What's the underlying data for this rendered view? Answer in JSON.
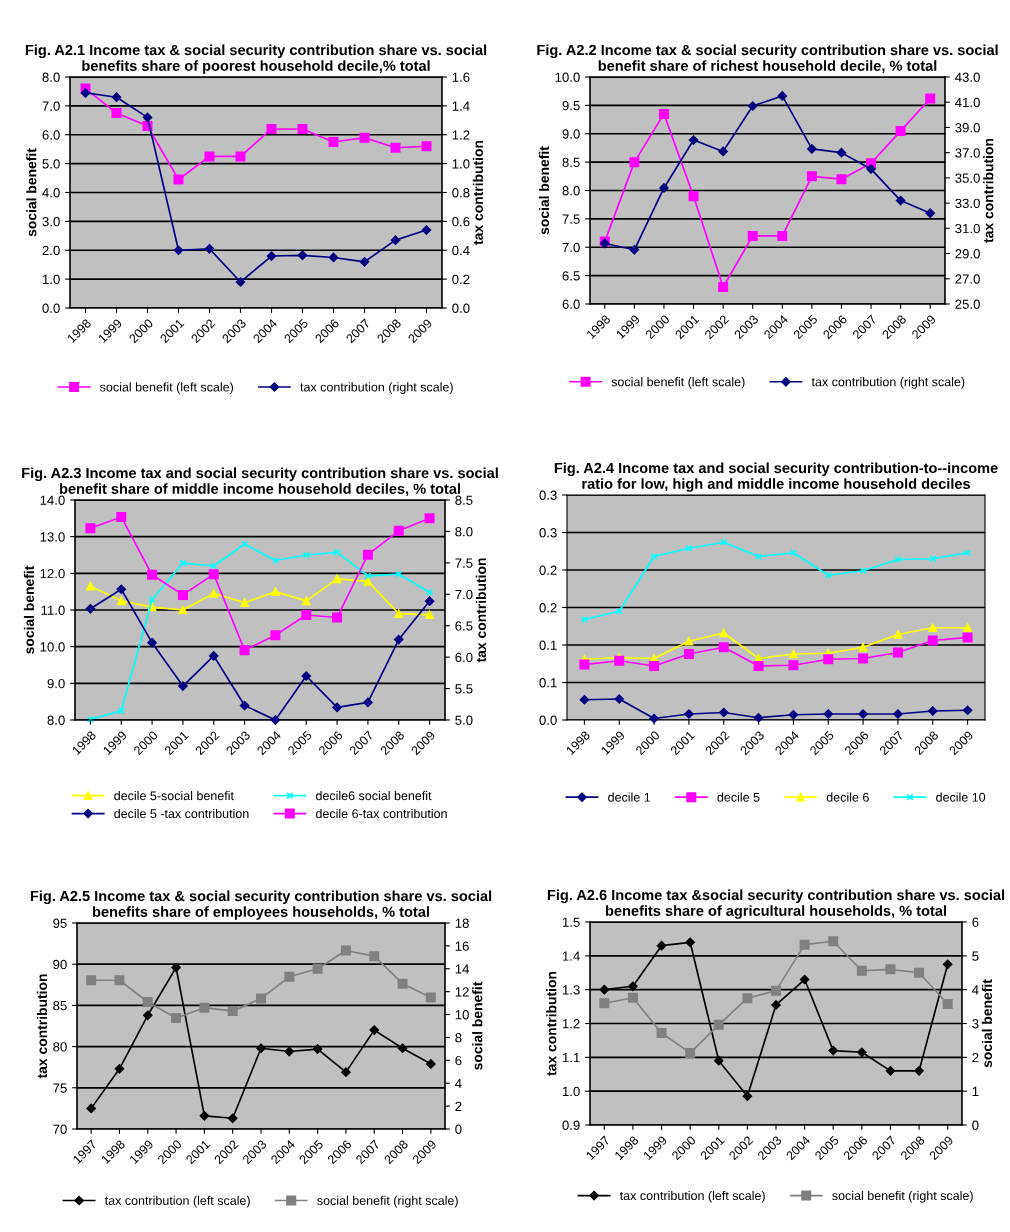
{
  "chart_data": [
    {
      "type": "line",
      "title": "Fig. A2.1 Income tax & social security contribution share vs. social benefits share of poorest household decile,% total",
      "ylabel": "social benefit",
      "y2label": "tax contribution",
      "categories": [
        "1998",
        "1999",
        "2000",
        "2001",
        "2002",
        "2003",
        "2004",
        "2005",
        "2006",
        "2007",
        "2008",
        "2009"
      ],
      "series": [
        {
          "name": "social benefit (left scale)",
          "color": "#ff00ff",
          "marker": "square",
          "values": [
            7.6,
            6.75,
            6.3,
            4.45,
            5.25,
            5.25,
            6.2,
            6.2,
            5.75,
            5.9,
            5.55,
            5.6
          ]
        },
        {
          "name": "tax contribution (right scale)",
          "color": "#000080",
          "marker": "diamond",
          "axis": "y2",
          "values": [
            1.49,
            1.46,
            1.32,
            0.4,
            0.41,
            0.18,
            0.36,
            0.365,
            0.35,
            0.32,
            0.47,
            0.54
          ]
        }
      ],
      "ylim": [
        0,
        8
      ],
      "yticks": [
        {
          "value": 0,
          "label": "0.0"
        },
        {
          "value": 1,
          "label": "1.0"
        },
        {
          "value": 2,
          "label": "2.0"
        },
        {
          "value": 3,
          "label": "3.0"
        },
        {
          "value": 4,
          "label": "4.0"
        },
        {
          "value": 5,
          "label": "5.0"
        },
        {
          "value": 6,
          "label": "6.0"
        },
        {
          "value": 7,
          "label": "7.0"
        },
        {
          "value": 8,
          "label": "8.0"
        }
      ],
      "y2lim": [
        0,
        1.6
      ],
      "y2ticks": [
        {
          "value": 0,
          "label": "0.0"
        },
        0.2,
        0.4,
        0.6,
        0.8,
        {
          "value": 1,
          "label": "1.0"
        },
        1.2,
        1.4,
        1.6
      ],
      "grid": "y",
      "legend": "bottom"
    },
    {
      "type": "line",
      "title": "Fig. A2.2 Income tax & social security contribution share vs. social benefit share of richest household decile, % total",
      "ylabel": "social benefit",
      "y2label": "tax contribution",
      "categories": [
        "1998",
        "1999",
        "2000",
        "2001",
        "2002",
        "2003",
        "2004",
        "2005",
        "2006",
        "2007",
        "2008",
        "2009"
      ],
      "series": [
        {
          "name": "social benefit (left scale)",
          "color": "#ff00ff",
          "marker": "square",
          "values": [
            7.1,
            8.5,
            9.35,
            7.9,
            6.3,
            7.2,
            7.2,
            8.25,
            8.2,
            8.48,
            9.05,
            9.62
          ]
        },
        {
          "name": "tax contribution (right scale)",
          "color": "#000080",
          "marker": "diamond",
          "axis": "y2",
          "values": [
            29.8,
            29.3,
            34.2,
            38.0,
            37.1,
            40.7,
            41.5,
            37.3,
            37.0,
            35.7,
            33.2,
            32.2
          ]
        }
      ],
      "ylim": [
        6,
        10
      ],
      "yticks": [
        {
          "value": 6,
          "label": "6.0"
        },
        6.5,
        {
          "value": 7,
          "label": "7.0"
        },
        7.5,
        {
          "value": 8,
          "label": "8.0"
        },
        8.5,
        {
          "value": 9,
          "label": "9.0"
        },
        9.5,
        {
          "value": 10,
          "label": "10.0"
        }
      ],
      "y2lim": [
        25,
        43
      ],
      "y2ticks": [
        {
          "value": 25,
          "label": "25.0"
        },
        {
          "value": 27,
          "label": "27.0"
        },
        {
          "value": 29,
          "label": "29.0"
        },
        {
          "value": 31,
          "label": "31.0"
        },
        {
          "value": 33,
          "label": "33.0"
        },
        {
          "value": 35,
          "label": "35.0"
        },
        {
          "value": 37,
          "label": "37.0"
        },
        {
          "value": 39,
          "label": "39.0"
        },
        {
          "value": 41,
          "label": "41.0"
        },
        {
          "value": 43,
          "label": "43.0"
        }
      ],
      "grid": "y",
      "legend": "bottom"
    },
    {
      "type": "line",
      "title": "Fig. A2.3 Income tax and social security contribution share vs. social benefit share of middle income household deciles, % total",
      "ylabel": "social benefit",
      "y2label": "tax contribution",
      "categories": [
        "1998",
        "1999",
        "2000",
        "2001",
        "2002",
        "2003",
        "2004",
        "2005",
        "2006",
        "2007",
        "2008",
        "2009"
      ],
      "series": [
        {
          "name": "decile 5-social benefit",
          "color": "#ffff00",
          "marker": "triangle",
          "values": [
            11.65,
            11.25,
            11.08,
            11.0,
            11.45,
            11.2,
            11.5,
            11.25,
            11.85,
            11.78,
            10.9,
            10.87
          ]
        },
        {
          "name": "decile6 social benefit",
          "color": "#00ffff",
          "marker": "cross",
          "values": [
            8.02,
            8.25,
            11.28,
            12.28,
            12.2,
            12.8,
            12.35,
            12.5,
            12.57,
            11.93,
            11.98,
            11.48
          ]
        },
        {
          "name": "decile 5 -tax contribution",
          "color": "#000080",
          "marker": "diamond",
          "axis": "y2",
          "values": [
            6.77,
            7.08,
            6.23,
            5.54,
            6.02,
            5.23,
            5.0,
            5.7,
            5.2,
            5.28,
            6.28,
            6.89
          ]
        },
        {
          "name": "decile 6-tax contribution",
          "color": "#ff00ff",
          "marker": "square",
          "axis": "y2",
          "values": [
            8.05,
            8.23,
            7.31,
            6.99,
            7.32,
            6.11,
            6.35,
            6.67,
            6.63,
            7.63,
            8.01,
            8.21
          ]
        }
      ],
      "ylim": [
        8,
        14
      ],
      "yticks": [
        {
          "value": 8,
          "label": "8.0"
        },
        {
          "value": 9,
          "label": "9.0"
        },
        {
          "value": 10,
          "label": "10.0"
        },
        {
          "value": 11,
          "label": "11.0"
        },
        {
          "value": 12,
          "label": "12.0"
        },
        {
          "value": 13,
          "label": "13.0"
        },
        {
          "value": 14,
          "label": "14.0"
        }
      ],
      "y2lim": [
        5,
        8.5
      ],
      "y2ticks": [
        {
          "value": 5,
          "label": "5.0"
        },
        5.5,
        {
          "value": 6,
          "label": "6.0"
        },
        6.5,
        {
          "value": 7,
          "label": "7.0"
        },
        7.5,
        {
          "value": 8,
          "label": "8.0"
        },
        8.5
      ],
      "grid": "y",
      "legend": "bottom"
    },
    {
      "type": "line",
      "title": "Fig. A2.4 Income tax and social security contribution-to--income ratio for low, high and middle income household deciles",
      "categories": [
        "1998",
        "1999",
        "2000",
        "2001",
        "2002",
        "2003",
        "2004",
        "2005",
        "2006",
        "2007",
        "2008",
        "2009"
      ],
      "series": [
        {
          "name": "decile 1",
          "color": "#000080",
          "marker": "diamond",
          "values": [
            0.027,
            0.028,
            0.002,
            0.008,
            0.01,
            0.003,
            0.007,
            0.008,
            0.008,
            0.008,
            0.012,
            0.013
          ]
        },
        {
          "name": "decile 5",
          "color": "#ff00ff",
          "marker": "square",
          "values": [
            0.074,
            0.079,
            0.072,
            0.088,
            0.097,
            0.072,
            0.073,
            0.081,
            0.082,
            0.09,
            0.106,
            0.11
          ]
        },
        {
          "name": "decile 6",
          "color": "#ffff00",
          "marker": "triangle",
          "values": [
            0.081,
            0.083,
            0.082,
            0.105,
            0.116,
            0.082,
            0.088,
            0.089,
            0.097,
            0.114,
            0.123,
            0.123
          ]
        },
        {
          "name": "decile 10",
          "color": "#00ffff",
          "marker": "cross",
          "values": [
            0.134,
            0.145,
            0.218,
            0.229,
            0.237,
            0.218,
            0.223,
            0.193,
            0.199,
            0.214,
            0.215,
            0.223
          ]
        }
      ],
      "ylim": [
        0,
        0.3
      ],
      "yticks": [
        {
          "value": 0,
          "label": "0.0"
        },
        {
          "value": 0.05,
          "label": "0.1"
        },
        {
          "value": 0.1,
          "label": "0.1"
        },
        {
          "value": 0.15,
          "label": "0.2"
        },
        {
          "value": 0.2,
          "label": "0.2"
        },
        {
          "value": 0.25,
          "label": "0.3"
        },
        {
          "value": 0.3,
          "label": "0.3"
        }
      ],
      "grid": "y",
      "legend": "bottom"
    },
    {
      "type": "line",
      "title": "Fig. A2.5 Income tax & social security contribution share vs. social benefits share of employees households, % total",
      "ylabel": "tax contribution",
      "y2label": "social benefit",
      "categories": [
        "1997",
        "1998",
        "1999",
        "2000",
        "2001",
        "2002",
        "2003",
        "2004",
        "2005",
        "2006",
        "2007",
        "2008",
        "2009"
      ],
      "series": [
        {
          "name": "tax contribution (left scale)",
          "color": "#000000",
          "marker": "diamond",
          "values": [
            72.5,
            77.3,
            83.8,
            89.6,
            71.6,
            71.3,
            79.8,
            79.4,
            79.7,
            76.9,
            82.0,
            79.8,
            77.9
          ]
        },
        {
          "name": "social benefit (right scale)",
          "color": "#808080",
          "marker": "square",
          "axis": "y2",
          "values": [
            13.0,
            13.0,
            11.1,
            9.7,
            10.6,
            10.3,
            11.4,
            13.3,
            14.0,
            15.6,
            15.1,
            12.7,
            11.5
          ]
        }
      ],
      "ylim": [
        70,
        95
      ],
      "yticks": [
        70,
        75,
        80,
        85,
        90,
        95
      ],
      "y2lim": [
        0,
        18
      ],
      "y2ticks": [
        0,
        2,
        4,
        6,
        8,
        10,
        12,
        14,
        16,
        18
      ],
      "grid": "y",
      "legend": "bottom"
    },
    {
      "type": "line",
      "title": "Fig. A2.6 Income tax &social security contribution share vs. social benefits share of agricultural households, % total",
      "ylabel": "tax contribution",
      "y2label": "social benefit",
      "categories": [
        "1997",
        "1998",
        "1999",
        "2000",
        "2001",
        "2002",
        "2003",
        "2004",
        "2005",
        "2006",
        "2007",
        "2008",
        "2009"
      ],
      "series": [
        {
          "name": "tax contribution (left scale)",
          "color": "#000000",
          "marker": "diamond",
          "values": [
            1.3,
            1.31,
            1.43,
            1.44,
            1.09,
            0.985,
            1.255,
            1.33,
            1.12,
            1.115,
            1.06,
            1.06,
            1.375
          ]
        },
        {
          "name": "social benefit (right scale)",
          "color": "#808080",
          "marker": "square",
          "axis": "y2",
          "values": [
            3.6,
            3.76,
            2.72,
            2.13,
            2.96,
            3.75,
            3.97,
            5.33,
            5.43,
            4.56,
            4.6,
            4.5,
            3.58
          ]
        }
      ],
      "ylim": [
        0.9,
        1.5
      ],
      "yticks": [
        0.9,
        {
          "value": 1,
          "label": "1.0"
        },
        1.1,
        1.2,
        1.3,
        1.4,
        1.5
      ],
      "y2lim": [
        0,
        6
      ],
      "y2ticks": [
        0,
        1,
        2,
        3,
        4,
        5,
        6
      ],
      "grid": "y",
      "legend": "bottom"
    }
  ]
}
